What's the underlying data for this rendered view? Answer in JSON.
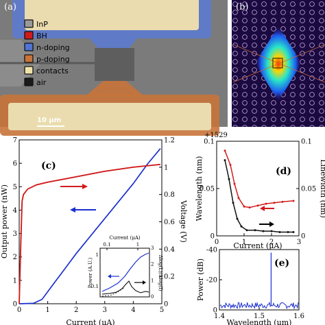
{
  "panel_a": {
    "label": "(a)",
    "legend": [
      {
        "text": "InP",
        "color": "#9a9a9a"
      },
      {
        "text": "BH",
        "color": "#d11a1a"
      },
      {
        "text": "n-doping",
        "color": "#4f74d6"
      },
      {
        "text": "p-doping",
        "color": "#c8743b"
      },
      {
        "text": "contacts",
        "color": "#f0e3a8"
      },
      {
        "text": "air",
        "color": "#1a1a1a"
      }
    ],
    "scalebar": "10 μm"
  },
  "panel_b": {
    "label": "(b)"
  },
  "chart_data": [
    {
      "id": "c",
      "type": "line",
      "panel_label": "(c)",
      "xlabel": "Current (μA)",
      "ylabel": "Output power (nW)",
      "y2label": "Voltage (V)",
      "xlim": [
        0,
        5
      ],
      "ylim": [
        0,
        7.5
      ],
      "y2lim": [
        0,
        1.2
      ],
      "xticks": [
        "0",
        "1",
        "2",
        "3",
        "4",
        "5"
      ],
      "yticks": [
        "0",
        "1",
        "2",
        "3",
        "4",
        "5",
        "6",
        "7"
      ],
      "y2ticks": [
        "0",
        "0.2",
        "0.4",
        "0.6",
        "0.8",
        "1",
        "1.2"
      ],
      "series": [
        {
          "axis": "y",
          "color": "#1a2fcf",
          "x": [
            0,
            0.5,
            0.8,
            1.2,
            1.6,
            2.0,
            2.5,
            3.0,
            3.5,
            4.0,
            4.5,
            4.95
          ],
          "y": [
            0,
            0.02,
            0.2,
            0.9,
            1.6,
            2.3,
            3.1,
            3.9,
            4.7,
            5.5,
            6.4,
            7.1
          ]
        },
        {
          "axis": "y2",
          "color": "#d21c1c",
          "x": [
            0,
            0.05,
            0.1,
            0.15,
            0.3,
            0.6,
            1.0,
            2.0,
            3.0,
            4.0,
            4.95
          ],
          "y": [
            0,
            0.4,
            0.75,
            0.8,
            0.84,
            0.87,
            0.89,
            0.93,
            0.97,
            1.0,
            1.02
          ]
        }
      ],
      "inset": {
        "xlabel_top": "Current (μA)",
        "ylabel": "Power (A.U.)",
        "y2label": "Δlog(L)/Δlog(I)",
        "xticks": [
          "0.1",
          "1"
        ],
        "yticks": [
          "1",
          "0.1"
        ],
        "y2ticks": [
          "0",
          "1",
          "2",
          "3"
        ]
      }
    },
    {
      "id": "d",
      "type": "line",
      "panel_label": "(d)",
      "offset_label": "+1529",
      "xlabel": "Current (μA)",
      "ylabel": "Wavelength (nm)",
      "y2label": "Linewidth (nm)",
      "xlim": [
        0,
        3
      ],
      "ylim": [
        0,
        0.1
      ],
      "y2lim": [
        0,
        0.1
      ],
      "xticks": [
        "0",
        "1",
        "2",
        "3"
      ],
      "yticks": [
        "0",
        "0.05",
        "0.1"
      ],
      "y2ticks": [
        "0",
        "0.05",
        "0.1"
      ],
      "series": [
        {
          "axis": "y2",
          "color": "#d21c1c",
          "x": [
            0.3,
            0.5,
            0.65,
            0.8,
            1.0,
            1.2,
            1.5,
            1.8,
            2.1,
            2.4,
            2.8
          ],
          "y": [
            0.09,
            0.075,
            0.055,
            0.04,
            0.031,
            0.03,
            0.032,
            0.034,
            0.035,
            0.036,
            0.037
          ]
        },
        {
          "axis": "y",
          "color": "#111111",
          "x": [
            0.3,
            0.45,
            0.6,
            0.75,
            0.9,
            1.1,
            1.4,
            1.7,
            2.0,
            2.3,
            2.6,
            2.8
          ],
          "y": [
            0.08,
            0.06,
            0.035,
            0.018,
            0.01,
            0.006,
            0.006,
            0.005,
            0.005,
            0.004,
            0.004,
            0.004
          ]
        }
      ]
    },
    {
      "id": "e",
      "type": "line",
      "panel_label": "(e)",
      "xlabel": "Wavelength (μm)",
      "ylabel": "Power (dB)",
      "xlim": [
        1.4,
        1.6
      ],
      "ylim": [
        -40,
        0
      ],
      "xticks": [
        "1.4",
        "1.5",
        "1.6"
      ],
      "yticks": [
        "0",
        "-20",
        "-40"
      ],
      "series": [
        {
          "color": "#1a2fcf",
          "peak_x": 1.53,
          "peak_y": -2,
          "floor_y": -37
        }
      ]
    }
  ]
}
